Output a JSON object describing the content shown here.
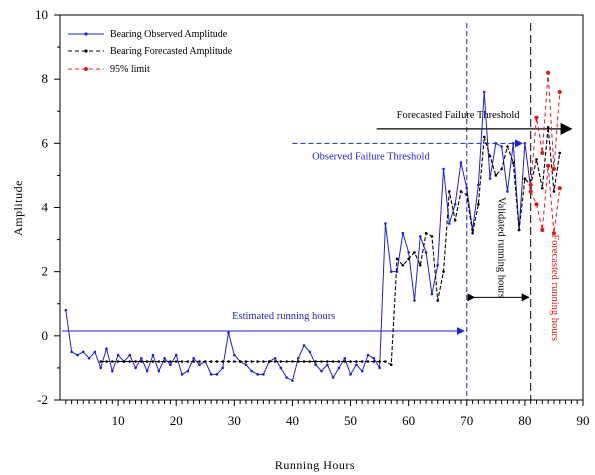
{
  "chart_data": {
    "type": "line",
    "xlabel": "Running Hours",
    "ylabel": "Amplitude",
    "xlim": [
      0,
      90
    ],
    "ylim": [
      -2,
      10
    ],
    "xticks": [
      10,
      20,
      30,
      40,
      50,
      60,
      70,
      80,
      90
    ],
    "yticks": [
      -2,
      0,
      2,
      4,
      6,
      8,
      10
    ],
    "grid": false,
    "legend_position": "top-left",
    "colors": {
      "observed": "#1f1fd6",
      "forecast": "#000000",
      "limit": "#e01b1b",
      "annotation_blue": "#1f1fd6"
    },
    "series": [
      {
        "name": "Bearing Observed Amplitude",
        "style": "solid",
        "x": [
          1,
          2,
          3,
          4,
          5,
          6,
          7,
          8,
          9,
          10,
          11,
          12,
          13,
          14,
          15,
          16,
          17,
          18,
          19,
          20,
          21,
          22,
          23,
          24,
          25,
          26,
          27,
          28,
          29,
          30,
          31,
          32,
          33,
          34,
          35,
          36,
          37,
          38,
          39,
          40,
          41,
          42,
          43,
          44,
          45,
          46,
          47,
          48,
          49,
          50,
          51,
          52,
          53,
          54,
          55,
          56,
          57,
          58,
          59,
          60,
          61,
          62,
          63,
          64,
          65,
          66,
          67,
          68,
          69,
          70,
          71,
          72,
          73,
          74,
          75,
          76,
          77,
          78,
          79,
          80,
          81
        ],
        "y": [
          0.8,
          -0.5,
          -0.6,
          -0.5,
          -0.7,
          -0.5,
          -1.0,
          -0.4,
          -1.1,
          -0.6,
          -0.8,
          -0.6,
          -1.0,
          -0.7,
          -1.1,
          -0.6,
          -1.1,
          -0.7,
          -0.9,
          -0.6,
          -1.2,
          -1.1,
          -0.7,
          -0.9,
          -0.8,
          -1.2,
          -1.2,
          -1.0,
          0.1,
          -0.6,
          -0.8,
          -0.9,
          -1.1,
          -1.2,
          -1.2,
          -0.8,
          -0.7,
          -1.0,
          -1.3,
          -1.4,
          -0.7,
          -0.3,
          -0.5,
          -0.9,
          -1.1,
          -0.9,
          -1.3,
          -1.0,
          -0.7,
          -1.2,
          -0.9,
          -1.1,
          -0.6,
          -0.7,
          -1.0,
          3.5,
          2.0,
          2.0,
          3.2,
          2.6,
          1.1,
          3.1,
          2.6,
          1.3,
          2.2,
          5.2,
          3.5,
          4.1,
          5.4,
          4.6,
          3.3,
          4.7,
          7.6,
          4.9,
          6.0,
          5.9,
          4.5,
          6.0,
          3.3,
          6.0,
          4.6
        ]
      },
      {
        "name": "Bearing Forecasted Amplitude",
        "style": "dashed",
        "x": [
          7,
          8,
          9,
          10,
          11,
          12,
          13,
          14,
          15,
          16,
          17,
          18,
          19,
          20,
          21,
          22,
          23,
          24,
          25,
          26,
          27,
          28,
          29,
          30,
          31,
          32,
          33,
          34,
          35,
          36,
          37,
          38,
          39,
          40,
          41,
          42,
          43,
          44,
          45,
          46,
          47,
          48,
          49,
          50,
          51,
          52,
          53,
          54,
          55,
          56,
          57,
          58,
          59,
          60,
          61,
          62,
          63,
          64,
          65,
          66,
          67,
          68,
          69,
          70,
          71,
          72,
          73,
          74,
          75,
          76,
          77,
          78,
          79,
          80,
          81,
          82,
          83,
          84,
          85,
          86
        ],
        "y": [
          -0.8,
          -0.8,
          -0.8,
          -0.8,
          -0.8,
          -0.8,
          -0.8,
          -0.8,
          -0.8,
          -0.8,
          -0.8,
          -0.8,
          -0.8,
          -0.8,
          -0.8,
          -0.8,
          -0.8,
          -0.8,
          -0.8,
          -0.8,
          -0.8,
          -0.8,
          -0.8,
          -0.8,
          -0.8,
          -0.8,
          -0.8,
          -0.8,
          -0.8,
          -0.8,
          -0.8,
          -0.8,
          -0.8,
          -0.8,
          -0.8,
          -0.8,
          -0.8,
          -0.8,
          -0.8,
          -0.8,
          -0.8,
          -0.8,
          -0.8,
          -0.8,
          -0.8,
          -0.8,
          -0.8,
          -0.8,
          -0.8,
          -0.8,
          -0.9,
          2.4,
          2.2,
          2.4,
          2.6,
          2.2,
          3.2,
          3.1,
          1.1,
          2.0,
          4.5,
          3.6,
          4.5,
          4.4,
          3.2,
          4.1,
          6.2,
          5.6,
          5.0,
          5.2,
          5.9,
          5.4,
          3.3,
          4.9,
          4.7,
          5.5,
          4.6,
          6.5,
          4.5,
          5.7
        ]
      },
      {
        "name": "95% limit",
        "style": "dashed",
        "x": [
          81,
          82,
          83,
          84,
          85,
          86
        ],
        "upper": [
          4.7,
          6.8,
          5.7,
          8.2,
          5.2,
          7.6
        ],
        "lower": [
          4.5,
          4.1,
          3.3,
          5.3,
          3.2,
          4.6
        ]
      }
    ],
    "annotations": {
      "estimated": "Estimated running hours",
      "observed_threshold": "Observed Failure Threshold",
      "forecasted_threshold": "Forecasted Failure Threshold",
      "validated": "Validated running hours",
      "forecasted_hours": "Forecasted running hours"
    },
    "reference_lines": {
      "observed_threshold_y": 6.0,
      "estimated_hours_y": 0.15,
      "validated_arrow_y": 1.2,
      "forecasted_threshold_y": 6.45,
      "blue_vline_x": 70,
      "black_vline_x": 81
    }
  }
}
